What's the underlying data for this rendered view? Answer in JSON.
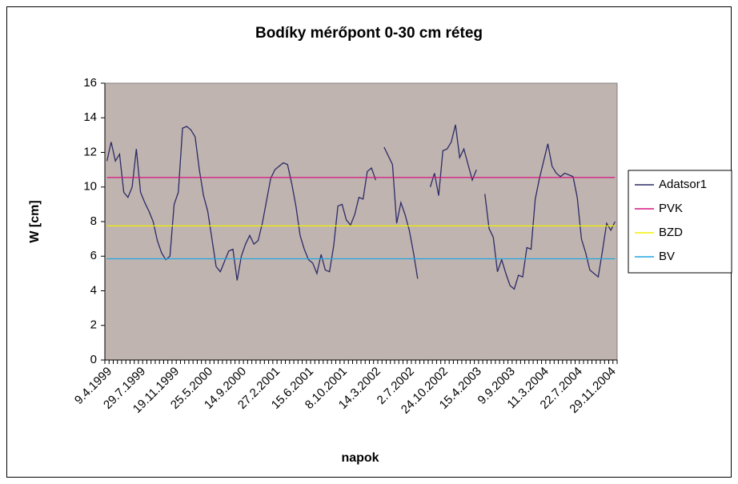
{
  "chart_data": {
    "type": "line",
    "title": "Bodíky mérőpont 0-30 cm réteg",
    "y_label": "W [cm]",
    "x_label": "napok",
    "categories": [
      "9.4.1999",
      null,
      null,
      null,
      null,
      null,
      null,
      null,
      "29.7.1999",
      null,
      null,
      null,
      null,
      null,
      null,
      null,
      "19.11.1999",
      null,
      null,
      null,
      null,
      null,
      null,
      null,
      "25.5.2000",
      null,
      null,
      null,
      null,
      null,
      null,
      null,
      "14.9.2000",
      null,
      null,
      null,
      null,
      null,
      null,
      null,
      "27.2.2001",
      null,
      null,
      null,
      null,
      null,
      null,
      null,
      "15.6.2001",
      null,
      null,
      null,
      null,
      null,
      null,
      null,
      "8.10.2001",
      null,
      null,
      null,
      null,
      null,
      null,
      null,
      "14.3.2002",
      null,
      null,
      null,
      null,
      null,
      null,
      null,
      "2.7.2002",
      null,
      null,
      null,
      null,
      null,
      null,
      null,
      "24.10.2002",
      null,
      null,
      null,
      null,
      null,
      null,
      null,
      "15.4.2003",
      null,
      null,
      null,
      null,
      null,
      null,
      null,
      "9.9.2003",
      null,
      null,
      null,
      null,
      null,
      null,
      null,
      "11.3.2004",
      null,
      null,
      null,
      null,
      null,
      null,
      null,
      "22.7.2004",
      null,
      null,
      null,
      null,
      null,
      null,
      null,
      "29.11.2004",
      null
    ],
    "series": [
      {
        "name": "Adatsor1",
        "color": "#2b2b66",
        "values": [
          11.5,
          12.6,
          11.5,
          11.9,
          9.7,
          9.4,
          10.0,
          12.2,
          9.7,
          9.1,
          8.6,
          8.0,
          6.9,
          6.2,
          5.8,
          6.0,
          9.0,
          9.7,
          13.4,
          13.5,
          13.3,
          12.9,
          11.0,
          9.5,
          8.6,
          7.0,
          5.4,
          5.1,
          5.7,
          6.3,
          6.4,
          4.6,
          6.0,
          6.7,
          7.2,
          6.7,
          6.9,
          7.9,
          9.2,
          10.5,
          11.0,
          11.2,
          11.4,
          11.3,
          10.2,
          8.9,
          7.2,
          6.4,
          5.8,
          5.6,
          5.0,
          6.1,
          5.2,
          5.1,
          6.6,
          8.9,
          9.0,
          8.1,
          7.8,
          8.4,
          9.4,
          9.3,
          10.9,
          11.1,
          10.4,
          null,
          12.3,
          11.8,
          11.3,
          7.9,
          9.1,
          8.4,
          7.5,
          6.2,
          4.7,
          null,
          null,
          10.0,
          10.8,
          9.5,
          12.1,
          12.2,
          12.6,
          13.6,
          11.7,
          12.2,
          11.3,
          10.4,
          11.0,
          null,
          9.6,
          7.6,
          7.1,
          5.1,
          5.8,
          5.0,
          4.3,
          4.1,
          4.9,
          4.8,
          6.5,
          6.4,
          9.3,
          10.5,
          11.5,
          12.5,
          11.2,
          10.8,
          10.6,
          10.8,
          10.7,
          10.6,
          9.4,
          7.0,
          6.2,
          5.2,
          5.0,
          4.8,
          6.3,
          7.9,
          7.5,
          8.0
        ]
      },
      {
        "name": "PVK",
        "color": "#d6137f",
        "values": [
          10.55,
          10.55,
          10.55,
          10.55,
          10.55,
          10.55,
          10.55,
          10.55,
          10.55,
          10.55,
          10.55,
          10.55,
          10.55,
          10.55,
          10.55,
          10.55,
          10.55,
          10.55,
          10.55,
          10.55,
          10.55,
          10.55,
          10.55,
          10.55,
          10.55,
          10.55,
          10.55,
          10.55,
          10.55,
          10.55,
          10.55,
          10.55,
          10.55,
          10.55,
          10.55,
          10.55,
          10.55,
          10.55,
          10.55,
          10.55,
          10.55,
          10.55,
          10.55,
          10.55,
          10.55,
          10.55,
          10.55,
          10.55,
          10.55,
          10.55,
          10.55,
          10.55,
          10.55,
          10.55,
          10.55,
          10.55,
          10.55,
          10.55,
          10.55,
          10.55,
          10.55,
          10.55,
          10.55,
          10.55,
          10.55,
          10.55,
          10.55,
          10.55,
          10.55,
          10.55,
          10.55,
          10.55,
          10.55,
          10.55,
          10.55,
          10.55,
          10.55,
          10.55,
          10.55,
          10.55,
          10.55,
          10.55,
          10.55,
          10.55,
          10.55,
          10.55,
          10.55,
          10.55,
          10.55,
          10.55,
          10.55,
          10.55,
          10.55,
          10.55,
          10.55,
          10.55,
          10.55,
          10.55,
          10.55,
          10.55,
          10.55,
          10.55,
          10.55,
          10.55,
          10.55,
          10.55,
          10.55,
          10.55,
          10.55,
          10.55,
          10.55,
          10.55,
          10.55,
          10.55,
          10.55,
          10.55,
          10.55,
          10.55,
          10.55,
          10.55,
          10.55,
          10.55
        ]
      },
      {
        "name": "BZD",
        "color": "#f0f000",
        "values": [
          7.75,
          7.75,
          7.75,
          7.75,
          7.75,
          7.75,
          7.75,
          7.75,
          7.75,
          7.75,
          7.75,
          7.75,
          7.75,
          7.75,
          7.75,
          7.75,
          7.75,
          7.75,
          7.75,
          7.75,
          7.75,
          7.75,
          7.75,
          7.75,
          7.75,
          7.75,
          7.75,
          7.75,
          7.75,
          7.75,
          7.75,
          7.75,
          7.75,
          7.75,
          7.75,
          7.75,
          7.75,
          7.75,
          7.75,
          7.75,
          7.75,
          7.75,
          7.75,
          7.75,
          7.75,
          7.75,
          7.75,
          7.75,
          7.75,
          7.75,
          7.75,
          7.75,
          7.75,
          7.75,
          7.75,
          7.75,
          7.75,
          7.75,
          7.75,
          7.75,
          7.75,
          7.75,
          7.75,
          7.75,
          7.75,
          7.75,
          7.75,
          7.75,
          7.75,
          7.75,
          7.75,
          7.75,
          7.75,
          7.75,
          7.75,
          7.75,
          7.75,
          7.75,
          7.75,
          7.75,
          7.75,
          7.75,
          7.75,
          7.75,
          7.75,
          7.75,
          7.75,
          7.75,
          7.75,
          7.75,
          7.75,
          7.75,
          7.75,
          7.75,
          7.75,
          7.75,
          7.75,
          7.75,
          7.75,
          7.75,
          7.75,
          7.75,
          7.75,
          7.75,
          7.75,
          7.75,
          7.75,
          7.75,
          7.75,
          7.75,
          7.75,
          7.75,
          7.75,
          7.75,
          7.75,
          7.75,
          7.75,
          7.75,
          7.75,
          7.75,
          7.75,
          7.75
        ]
      },
      {
        "name": "BV",
        "color": "#1ea6e0",
        "values": [
          5.85,
          5.85,
          5.85,
          5.85,
          5.85,
          5.85,
          5.85,
          5.85,
          5.85,
          5.85,
          5.85,
          5.85,
          5.85,
          5.85,
          5.85,
          5.85,
          5.85,
          5.85,
          5.85,
          5.85,
          5.85,
          5.85,
          5.85,
          5.85,
          5.85,
          5.85,
          5.85,
          5.85,
          5.85,
          5.85,
          5.85,
          5.85,
          5.85,
          5.85,
          5.85,
          5.85,
          5.85,
          5.85,
          5.85,
          5.85,
          5.85,
          5.85,
          5.85,
          5.85,
          5.85,
          5.85,
          5.85,
          5.85,
          5.85,
          5.85,
          5.85,
          5.85,
          5.85,
          5.85,
          5.85,
          5.85,
          5.85,
          5.85,
          5.85,
          5.85,
          5.85,
          5.85,
          5.85,
          5.85,
          5.85,
          5.85,
          5.85,
          5.85,
          5.85,
          5.85,
          5.85,
          5.85,
          5.85,
          5.85,
          5.85,
          5.85,
          5.85,
          5.85,
          5.85,
          5.85,
          5.85,
          5.85,
          5.85,
          5.85,
          5.85,
          5.85,
          5.85,
          5.85,
          5.85,
          5.85,
          5.85,
          5.85,
          5.85,
          5.85,
          5.85,
          5.85,
          5.85,
          5.85,
          5.85,
          5.85,
          5.85,
          5.85,
          5.85,
          5.85,
          5.85,
          5.85,
          5.85,
          5.85,
          5.85,
          5.85,
          5.85,
          5.85,
          5.85,
          5.85,
          5.85,
          5.85,
          5.85,
          5.85,
          5.85,
          5.85,
          5.85,
          5.85
        ]
      }
    ],
    "ylim": [
      0,
      16
    ],
    "yticks": [
      0,
      2,
      4,
      6,
      8,
      10,
      12,
      14,
      16
    ],
    "grid": false,
    "legend": "right",
    "plot_background": "#c0b4b0"
  }
}
